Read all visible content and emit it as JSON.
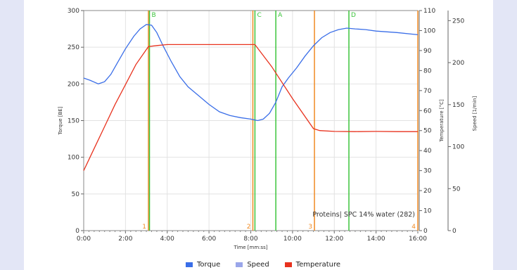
{
  "chart_data": {
    "type": "line",
    "xlabel": "Time [mm:ss]",
    "ylabel_left": "Torque [BE]",
    "ylabel_right1": "Temperature [°C]",
    "ylabel_right2": "Speed [1/min]",
    "xlim_min": [
      0,
      16
    ],
    "x_ticks": [
      "0:00",
      "2:00",
      "4:00",
      "6:00",
      "8:00",
      "10:00",
      "12:00",
      "14:00",
      "16:00"
    ],
    "torque_ylim": [
      0,
      300
    ],
    "torque_ticks": [
      "0",
      "50",
      "100",
      "150",
      "200",
      "250",
      "300"
    ],
    "temp_ylim": [
      0,
      110
    ],
    "temp_ticks": [
      "0",
      "10",
      "20",
      "30",
      "40",
      "50",
      "60",
      "70",
      "80",
      "90",
      "100",
      "110"
    ],
    "speed_ylim": [
      0,
      262
    ],
    "speed_ticks": [
      "0",
      "50",
      "100",
      "150",
      "200",
      "250"
    ],
    "annotation": "Proteins| SPC 14% water (282)",
    "series": [
      {
        "name": "Torque",
        "color": "#3a6ee8",
        "axis": "torque",
        "x": [
          0,
          0.3,
          0.7,
          1.0,
          1.3,
          1.6,
          2.0,
          2.4,
          2.7,
          3.0,
          3.25,
          3.5,
          3.8,
          4.2,
          4.6,
          5.0,
          5.5,
          6.0,
          6.5,
          7.0,
          7.5,
          8.0,
          8.33,
          8.6,
          8.9,
          9.2,
          9.5,
          9.8,
          10.2,
          10.6,
          11.0,
          11.4,
          11.8,
          12.2,
          12.6,
          13.0,
          13.5,
          14.0,
          15.0,
          16.0
        ],
        "y": [
          208,
          205,
          200,
          203,
          213,
          228,
          248,
          265,
          275,
          281,
          280,
          270,
          252,
          230,
          210,
          196,
          184,
          172,
          162,
          157,
          154,
          152,
          150,
          152,
          160,
          175,
          196,
          208,
          222,
          238,
          252,
          263,
          270,
          274,
          276,
          275,
          274,
          272,
          270,
          267
        ]
      },
      {
        "name": "Speed",
        "color": "#9aa6ea",
        "axis": "speed",
        "x": [],
        "y": []
      },
      {
        "name": "Temperature",
        "color": "#e8321e",
        "axis": "temp",
        "x": [
          0,
          0.5,
          1.0,
          1.5,
          2.0,
          2.5,
          3.1,
          3.5,
          4.0,
          5.0,
          6.0,
          7.0,
          8.2,
          9.0,
          10.0,
          11.0,
          11.3,
          12.0,
          13.0,
          14.0,
          15.0,
          16.0
        ],
        "y": [
          30,
          41,
          52,
          63,
          73,
          83,
          92,
          92.5,
          93,
          93,
          93,
          93,
          93,
          82,
          66,
          51,
          50,
          49.6,
          49.5,
          49.6,
          49.5,
          49.5
        ]
      }
    ],
    "markers": [
      {
        "label": "B",
        "x": 3.15,
        "color": "#3cc43c"
      },
      {
        "label": "C",
        "x": 8.2,
        "color": "#3cc43c"
      },
      {
        "label": "A",
        "x": 9.2,
        "color": "#3cc43c"
      },
      {
        "label": "D",
        "x": 12.7,
        "color": "#3cc43c"
      }
    ],
    "phase_lines": [
      {
        "label": "1",
        "x": 3.1,
        "color": "#f08a24"
      },
      {
        "label": "2",
        "x": 8.1,
        "color": "#f08a24"
      },
      {
        "label": "3",
        "x": 11.05,
        "color": "#f08a24"
      },
      {
        "label": "4",
        "x": 16.0,
        "color": "#f08a24"
      }
    ]
  }
}
